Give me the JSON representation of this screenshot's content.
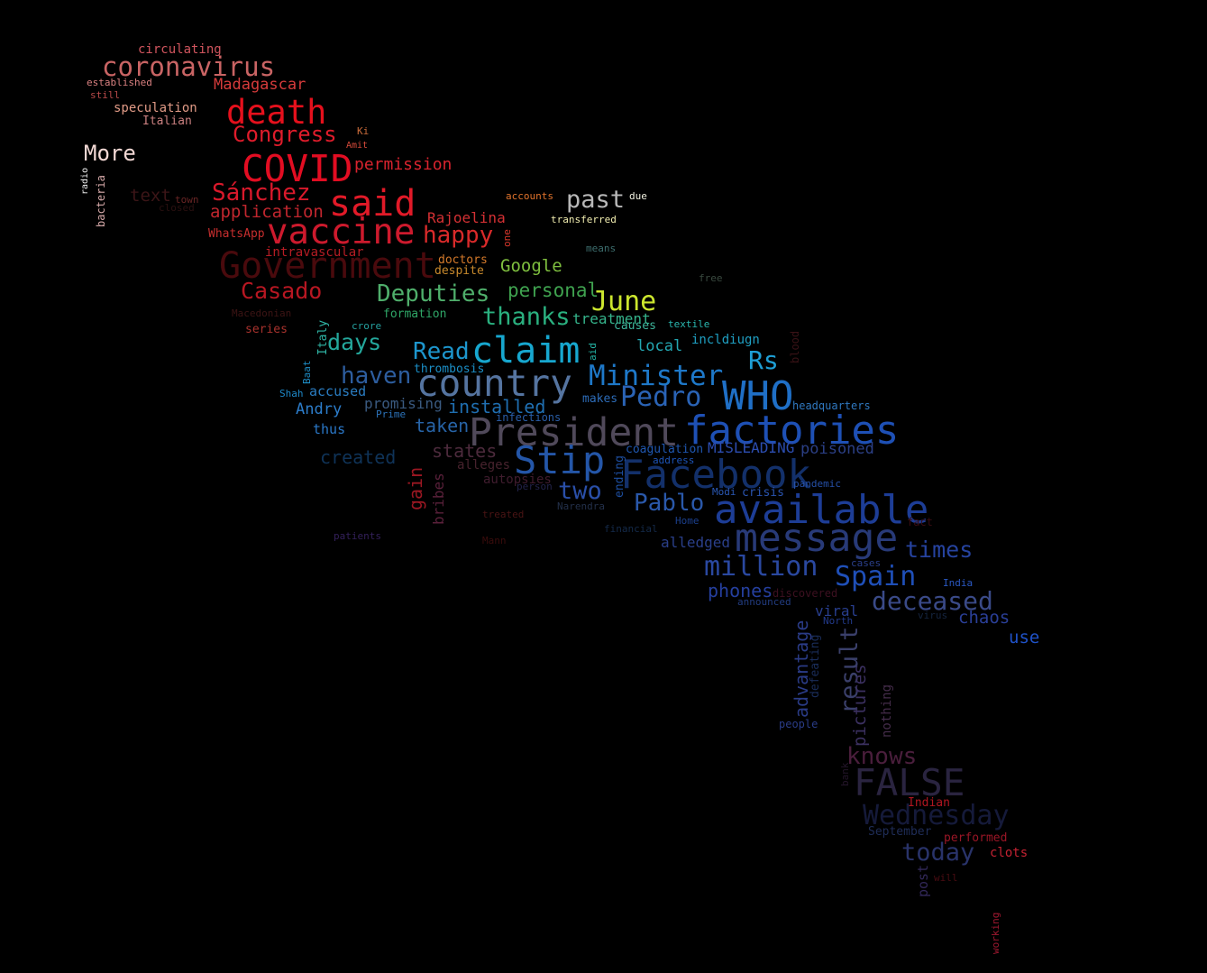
{
  "words": [
    {
      "text": "circulating",
      "color": "#d1555e"
    },
    {
      "text": "coronavirus",
      "color": "#c96464"
    },
    {
      "text": "established",
      "color": "#d98080"
    },
    {
      "text": "still",
      "color": "#b94a4a"
    },
    {
      "text": "Madagascar",
      "color": "#d63b3b"
    },
    {
      "text": "speculation",
      "color": "#e09a86"
    },
    {
      "text": "Italian",
      "color": "#c97f7f"
    },
    {
      "text": "death",
      "color": "#e5101c"
    },
    {
      "text": "Congress",
      "color": "#df1c2b"
    },
    {
      "text": "Ki",
      "color": "#c96b3a"
    },
    {
      "text": "Amit",
      "color": "#d94b3b"
    },
    {
      "text": "More",
      "color": "#f2d8d4"
    },
    {
      "text": "COVID",
      "color": "#e20d22"
    },
    {
      "text": "permission",
      "color": "#d9232e"
    },
    {
      "text": "radio",
      "color": "#eeeeee"
    },
    {
      "text": "bacteria",
      "color": "#d6a9a9"
    },
    {
      "text": "text",
      "color": "#3c1517"
    },
    {
      "text": "town",
      "color": "#6a2525"
    },
    {
      "text": "closed",
      "color": "#2a1010"
    },
    {
      "text": "Sánchez",
      "color": "#d9192b"
    },
    {
      "text": "said",
      "color": "#e11a28"
    },
    {
      "text": "application",
      "color": "#c0262e"
    },
    {
      "text": "accounts",
      "color": "#e0732c"
    },
    {
      "text": "past",
      "color": "#b8b8b8"
    },
    {
      "text": "due",
      "color": "#f0f0e0"
    },
    {
      "text": "transferred",
      "color": "#f2eeb0"
    },
    {
      "text": "Rajoelina",
      "color": "#d33033"
    },
    {
      "text": "vaccine",
      "color": "#cd1a2d"
    },
    {
      "text": "happy",
      "color": "#d92a2a"
    },
    {
      "text": "one",
      "color": "#d9372b"
    },
    {
      "text": "WhatsApp",
      "color": "#c62e2e"
    },
    {
      "text": "intravascular",
      "color": "#b61c24"
    },
    {
      "text": "means",
      "color": "#3d6e6e"
    },
    {
      "text": "doctors",
      "color": "#d4792a"
    },
    {
      "text": "Government",
      "color": "#4a0a0d"
    },
    {
      "text": "despite",
      "color": "#c7892c"
    },
    {
      "text": "Google",
      "color": "#7fbf3f"
    },
    {
      "text": "free",
      "color": "#3a4a40"
    },
    {
      "text": "Casado",
      "color": "#b81722"
    },
    {
      "text": "Deputies",
      "color": "#4fae6b"
    },
    {
      "text": "personal",
      "color": "#3fa24f"
    },
    {
      "text": "June",
      "color": "#cce62e"
    },
    {
      "text": "Macedonian",
      "color": "#3d1414"
    },
    {
      "text": "formation",
      "color": "#2fa667"
    },
    {
      "text": "thanks",
      "color": "#2ab07f"
    },
    {
      "text": "treatment",
      "color": "#35b48b"
    },
    {
      "text": "series",
      "color": "#a8322d"
    },
    {
      "text": "crore",
      "color": "#25a09f"
    },
    {
      "text": "causes",
      "color": "#3db49a"
    },
    {
      "text": "textile",
      "color": "#2ab7b0"
    },
    {
      "text": "Italy",
      "color": "#2fb6a6"
    },
    {
      "text": "days",
      "color": "#24a89c"
    },
    {
      "text": "aid",
      "color": "#25b7a8"
    },
    {
      "text": "local",
      "color": "#23a7b2"
    },
    {
      "text": "incldiugn",
      "color": "#1f9fc2"
    },
    {
      "text": "blood",
      "color": "#3a1216"
    },
    {
      "text": "Read",
      "color": "#1d96cd"
    },
    {
      "text": "claim",
      "color": "#17a7cf"
    },
    {
      "text": "Rs",
      "color": "#1e9ed5"
    },
    {
      "text": "Baat",
      "color": "#1e8ec8"
    },
    {
      "text": "haven",
      "color": "#2d5d9e"
    },
    {
      "text": "thrombosis",
      "color": "#1b8fc7"
    },
    {
      "text": "Minister",
      "color": "#1e78c8"
    },
    {
      "text": "country",
      "color": "#5574a0"
    },
    {
      "text": "WHO",
      "color": "#1f6fc6"
    },
    {
      "text": "Shah",
      "color": "#1e88c8"
    },
    {
      "text": "accused",
      "color": "#2a7cc1"
    },
    {
      "text": "makes",
      "color": "#2d6cb8"
    },
    {
      "text": "Pedro",
      "color": "#2a63b5"
    },
    {
      "text": "headquarters",
      "color": "#2f78c0"
    },
    {
      "text": "promising",
      "color": "#3a5a80"
    },
    {
      "text": "installed",
      "color": "#1f6eb0"
    },
    {
      "text": "Andry",
      "color": "#2c7dcb"
    },
    {
      "text": "Prime",
      "color": "#2c74bb"
    },
    {
      "text": "infections",
      "color": "#2a5ea8"
    },
    {
      "text": "President",
      "color": "#50495a"
    },
    {
      "text": "factories",
      "color": "#1e50b5"
    },
    {
      "text": "taken",
      "color": "#2763a6"
    },
    {
      "text": "thus",
      "color": "#2a77c7"
    },
    {
      "text": "states",
      "color": "#4c2a3c"
    },
    {
      "text": "coagulation",
      "color": "#1f57b0"
    },
    {
      "text": "MISLEADING",
      "color": "#2c4db0"
    },
    {
      "text": "poisoned",
      "color": "#2b3f85"
    },
    {
      "text": "created",
      "color": "#0f3358"
    },
    {
      "text": "Stip",
      "color": "#2456a8"
    },
    {
      "text": "address",
      "color": "#1d54b7"
    },
    {
      "text": "alleges",
      "color": "#47222d"
    },
    {
      "text": "Facebook",
      "color": "#13306a"
    },
    {
      "text": "gain",
      "color": "#9b1722"
    },
    {
      "text": "bribes",
      "color": "#59203a"
    },
    {
      "text": "ending",
      "color": "#1d4ea0"
    },
    {
      "text": "autopsies",
      "color": "#401c2e"
    },
    {
      "text": "person",
      "color": "#23234a"
    },
    {
      "text": "two",
      "color": "#2a4fa8"
    },
    {
      "text": "pandemic",
      "color": "#2650a8"
    },
    {
      "text": "Modi",
      "color": "#2a58b5"
    },
    {
      "text": "crisis",
      "color": "#2a54b0"
    },
    {
      "text": "Narendra",
      "color": "#23304a"
    },
    {
      "text": "Pablo",
      "color": "#2a58aa"
    },
    {
      "text": "available",
      "color": "#1d3d96"
    },
    {
      "text": "treated",
      "color": "#4a1414"
    },
    {
      "text": "Home",
      "color": "#1b3f8c"
    },
    {
      "text": "fact",
      "color": "#3a0d12"
    },
    {
      "text": "financial",
      "color": "#142a4a"
    },
    {
      "text": "patients",
      "color": "#33205a"
    },
    {
      "text": "Mann",
      "color": "#3a0c0c"
    },
    {
      "text": "alledged",
      "color": "#2a3f8a"
    },
    {
      "text": "message",
      "color": "#283a78"
    },
    {
      "text": "times",
      "color": "#2643a0"
    },
    {
      "text": "million",
      "color": "#2a48a0"
    },
    {
      "text": "cases",
      "color": "#2a3f8a"
    },
    {
      "text": "Spain",
      "color": "#1f4fb8"
    },
    {
      "text": "India",
      "color": "#2a58c2"
    },
    {
      "text": "phones",
      "color": "#253f9e"
    },
    {
      "text": "discovered",
      "color": "#3d1020"
    },
    {
      "text": "announced",
      "color": "#223c80"
    },
    {
      "text": "deceased",
      "color": "#3a4a88"
    },
    {
      "text": "viral",
      "color": "#283e8e"
    },
    {
      "text": "virus",
      "color": "#152540"
    },
    {
      "text": "chaos",
      "color": "#2a3f98"
    },
    {
      "text": "North",
      "color": "#223a8a"
    },
    {
      "text": "use",
      "color": "#1f52c8"
    },
    {
      "text": "advantage",
      "color": "#2a3b86"
    },
    {
      "text": "defeating",
      "color": "#1a2d5a"
    },
    {
      "text": "result",
      "color": "#3a3f6a"
    },
    {
      "text": "pictures",
      "color": "#3b3060"
    },
    {
      "text": "nothing",
      "color": "#442c4a"
    },
    {
      "text": "people",
      "color": "#2a3c88"
    },
    {
      "text": "knows",
      "color": "#4a1e3c"
    },
    {
      "text": "bank",
      "color": "#24152a"
    },
    {
      "text": "FALSE",
      "color": "#2a2440"
    },
    {
      "text": "Indian",
      "color": "#b01620"
    },
    {
      "text": "Wednesday",
      "color": "#151a3a"
    },
    {
      "text": "September",
      "color": "#1f2d58"
    },
    {
      "text": "performed",
      "color": "#9a1626"
    },
    {
      "text": "today",
      "color": "#29336a"
    },
    {
      "text": "clots",
      "color": "#c42232"
    },
    {
      "text": "post",
      "color": "#32285a"
    },
    {
      "text": "will",
      "color": "#4a0c12"
    },
    {
      "text": "working",
      "color": "#a01830"
    }
  ]
}
